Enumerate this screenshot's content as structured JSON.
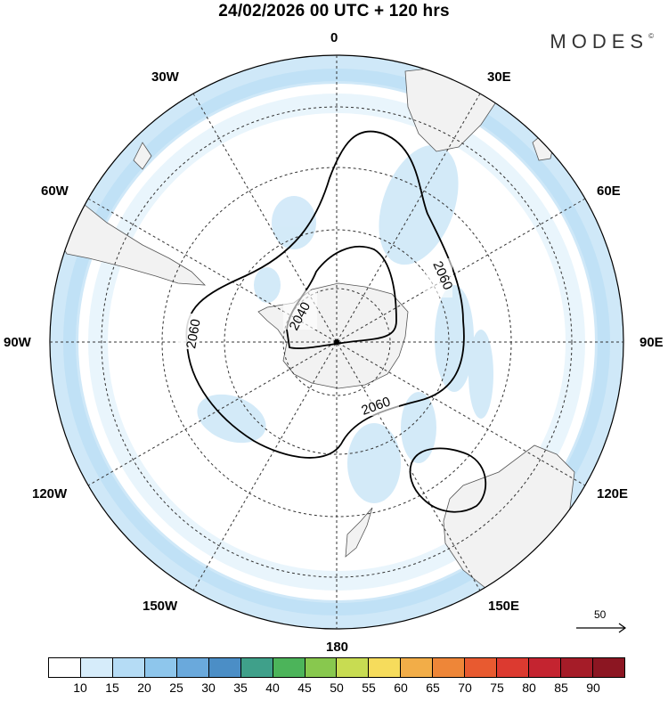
{
  "title": "24/02/2026  00 UTC  + 120 hrs",
  "brand": "MODES",
  "brand_mark": "©",
  "longitude_labels": {
    "n0": "0",
    "n30e": "30E",
    "n60e": "60E",
    "n90e": "90E",
    "n120e": "120E",
    "n150e": "150E",
    "n180": "180",
    "n150w": "150W",
    "n120w": "120W",
    "n90w": "90W",
    "n60w": "60W",
    "n30w": "30W"
  },
  "contour_labels": {
    "c2060_west": "2060",
    "c2040": "2040",
    "c2060_east": "2060",
    "c2060_south": "2060"
  },
  "wind_reference": {
    "value": "50"
  },
  "colorbar": {
    "ticks": [
      "10",
      "15",
      "20",
      "25",
      "30",
      "35",
      "40",
      "45",
      "50",
      "55",
      "60",
      "65",
      "70",
      "75",
      "80",
      "85",
      "90"
    ],
    "colors": [
      "#ffffff",
      "#d6ecfa",
      "#b5dcf5",
      "#8ec6ec",
      "#6aa9dc",
      "#4b8ec6",
      "#3fa08a",
      "#4cb45a",
      "#88c84e",
      "#c8dc52",
      "#f6dc5c",
      "#f2ad48",
      "#ee8638",
      "#e85a30",
      "#dc3a30",
      "#c42430",
      "#a51c28",
      "#8c1622"
    ]
  },
  "colors": {
    "land": "#f2f2f2",
    "ocean_bg": "#ffffff",
    "band_light": "#d6ecfa",
    "band_mid": "#b5dcf5"
  }
}
